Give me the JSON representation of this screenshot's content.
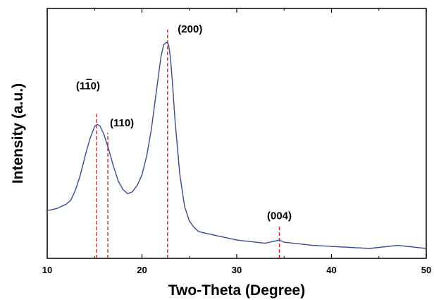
{
  "chart_data": {
    "type": "line",
    "xlabel": "Two-Theta (Degree)",
    "ylabel": "Intensity (a.u.)",
    "xlim": [
      10,
      50
    ],
    "x_ticks": [
      "10",
      "20",
      "30",
      "40",
      "50"
    ],
    "y_ticks_labeled": false,
    "grid": false,
    "series": [
      {
        "color": "#3a4a9a",
        "x": [
          10,
          11,
          12,
          12.5,
          13,
          13.5,
          14,
          14.5,
          15,
          15.3,
          15.6,
          16,
          16.5,
          17,
          17.5,
          18,
          18.5,
          19,
          19.5,
          20,
          20.5,
          21,
          21.5,
          22,
          22.3,
          22.6,
          22.8,
          23,
          23.2,
          23.5,
          24,
          24.5,
          25,
          25.5,
          26,
          27,
          28,
          29,
          30,
          31,
          32,
          33,
          34,
          34.5,
          35,
          36,
          38,
          40,
          42,
          44,
          46,
          47,
          48,
          50
        ],
        "y": [
          0.2,
          0.21,
          0.23,
          0.25,
          0.3,
          0.37,
          0.46,
          0.54,
          0.6,
          0.61,
          0.6,
          0.56,
          0.49,
          0.41,
          0.34,
          0.3,
          0.28,
          0.29,
          0.32,
          0.37,
          0.46,
          0.59,
          0.76,
          0.93,
          0.99,
          1.0,
          0.99,
          0.93,
          0.82,
          0.62,
          0.37,
          0.22,
          0.15,
          0.12,
          0.1,
          0.09,
          0.08,
          0.07,
          0.06,
          0.055,
          0.05,
          0.045,
          0.055,
          0.06,
          0.05,
          0.045,
          0.035,
          0.03,
          0.025,
          0.02,
          0.03,
          0.035,
          0.03,
          0.02
        ]
      }
    ],
    "reference_lines": [
      {
        "x": 15.2,
        "y_top": 0.66,
        "color": "#ff0000"
      },
      {
        "x": 16.4,
        "y_top": 0.57,
        "color": "#ff0000"
      },
      {
        "x": 22.7,
        "y_top": 1.06,
        "color": "#ff0000"
      },
      {
        "x": 34.5,
        "y_top": 0.13,
        "color": "#ff0000"
      }
    ],
    "annotations": [
      {
        "label": "(110)",
        "has_overline": true,
        "x": 15.2,
        "y": 0.73
      },
      {
        "label": "(110)",
        "has_overline": false,
        "x": 16.4,
        "y": 0.62
      },
      {
        "label": "(200)",
        "has_overline": false,
        "x": 22.7,
        "y": 1.06
      },
      {
        "label": "(004)",
        "has_overline": false,
        "x": 34.5,
        "y": 0.16
      }
    ]
  }
}
